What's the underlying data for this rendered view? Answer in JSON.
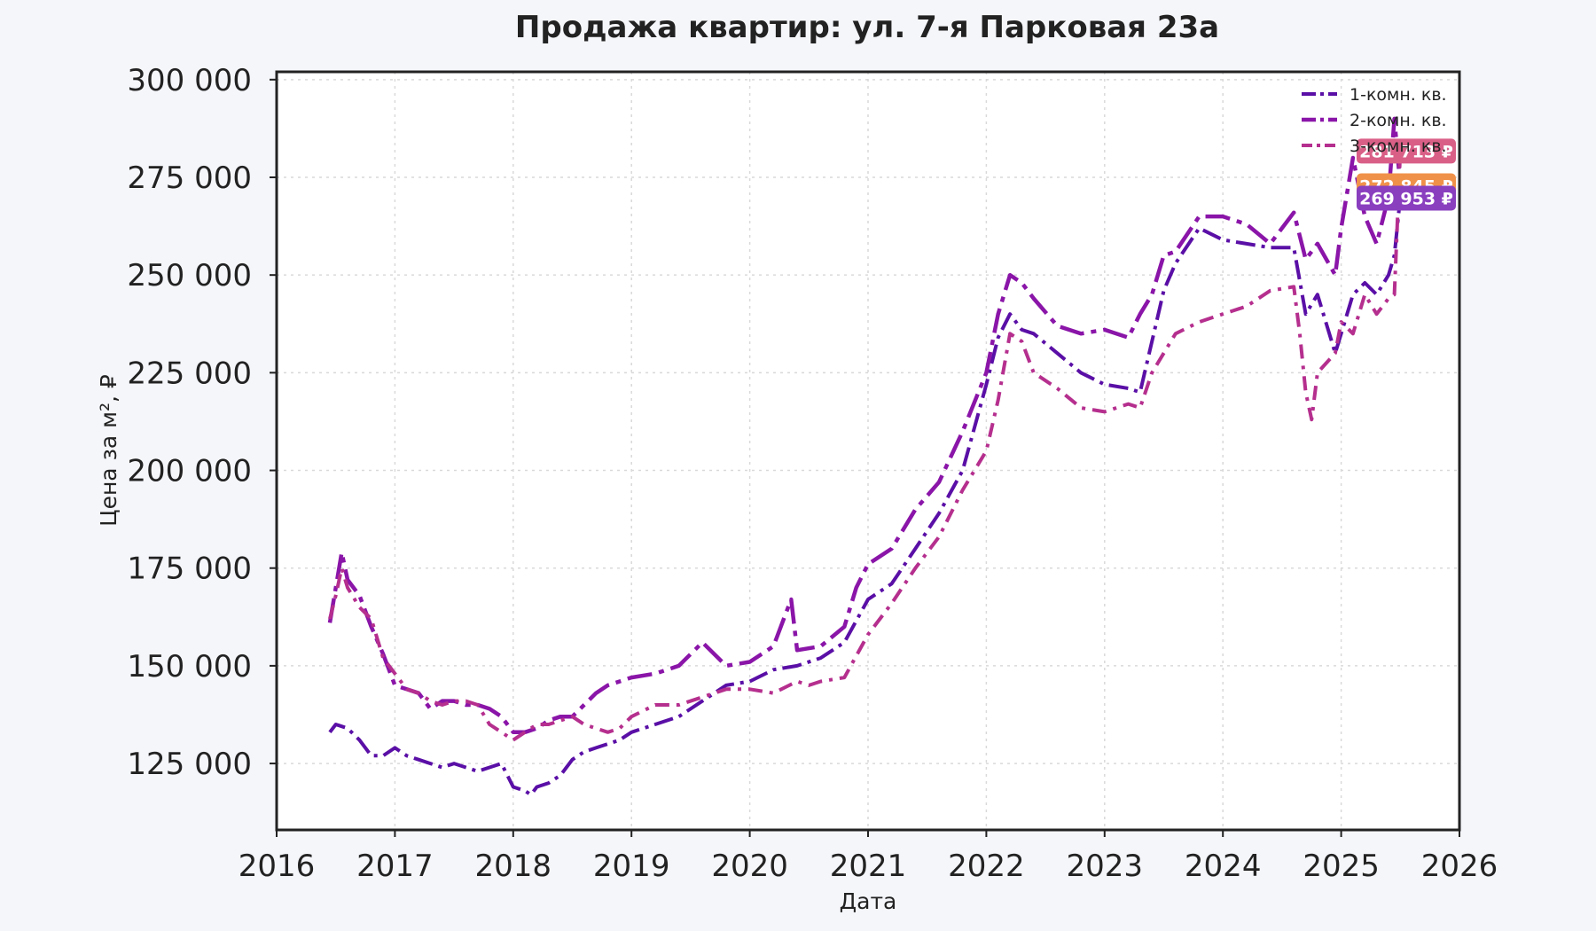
{
  "chart_data": {
    "type": "line",
    "title": "Продажа квартир: ул. 7-я Парковая 23а",
    "xlabel": "Дата",
    "ylabel": "Цена за м², ₽",
    "xlim": [
      2016.0,
      2026.0
    ],
    "ylim": [
      108000,
      302000
    ],
    "x_ticks": [
      "2016",
      "2017",
      "2018",
      "2019",
      "2020",
      "2021",
      "2022",
      "2023",
      "2024",
      "2025",
      "2026"
    ],
    "y_ticks": [
      "125 000",
      "150 000",
      "175 000",
      "200 000",
      "225 000",
      "250 000",
      "275 000",
      "300 000"
    ],
    "grid": true,
    "legend_position": "top-right",
    "series": [
      {
        "name": "1-комн. кв.",
        "color": "#5a0fa6",
        "points": [
          [
            2016.45,
            133000
          ],
          [
            2016.5,
            135000
          ],
          [
            2016.6,
            134000
          ],
          [
            2016.7,
            131000
          ],
          [
            2016.8,
            127000
          ],
          [
            2016.9,
            127000
          ],
          [
            2017.0,
            129000
          ],
          [
            2017.1,
            127000
          ],
          [
            2017.2,
            126000
          ],
          [
            2017.3,
            125000
          ],
          [
            2017.4,
            124000
          ],
          [
            2017.5,
            125000
          ],
          [
            2017.6,
            124000
          ],
          [
            2017.7,
            123000
          ],
          [
            2017.8,
            124000
          ],
          [
            2017.9,
            125000
          ],
          [
            2018.0,
            119000
          ],
          [
            2018.1,
            118000
          ],
          [
            2018.15,
            117000
          ],
          [
            2018.2,
            119000
          ],
          [
            2018.3,
            120000
          ],
          [
            2018.4,
            122000
          ],
          [
            2018.5,
            126000
          ],
          [
            2018.6,
            128000
          ],
          [
            2018.7,
            129000
          ],
          [
            2018.8,
            130000
          ],
          [
            2018.9,
            131000
          ],
          [
            2019.0,
            133000
          ],
          [
            2019.2,
            135000
          ],
          [
            2019.4,
            137000
          ],
          [
            2019.6,
            141000
          ],
          [
            2019.8,
            145000
          ],
          [
            2020.0,
            146000
          ],
          [
            2020.2,
            149000
          ],
          [
            2020.4,
            150000
          ],
          [
            2020.6,
            152000
          ],
          [
            2020.8,
            156000
          ],
          [
            2021.0,
            167000
          ],
          [
            2021.2,
            171000
          ],
          [
            2021.4,
            180000
          ],
          [
            2021.6,
            189000
          ],
          [
            2021.8,
            200000
          ],
          [
            2022.0,
            222000
          ],
          [
            2022.1,
            234000
          ],
          [
            2022.2,
            240000
          ],
          [
            2022.3,
            236000
          ],
          [
            2022.4,
            235000
          ],
          [
            2022.6,
            230000
          ],
          [
            2022.8,
            225000
          ],
          [
            2023.0,
            222000
          ],
          [
            2023.2,
            221000
          ],
          [
            2023.3,
            220000
          ],
          [
            2023.4,
            233000
          ],
          [
            2023.5,
            246000
          ],
          [
            2023.6,
            253000
          ],
          [
            2023.8,
            262000
          ],
          [
            2024.0,
            259000
          ],
          [
            2024.2,
            258000
          ],
          [
            2024.4,
            257000
          ],
          [
            2024.6,
            257000
          ],
          [
            2024.7,
            240000
          ],
          [
            2024.8,
            245000
          ],
          [
            2024.95,
            230000
          ],
          [
            2025.0,
            235000
          ],
          [
            2025.1,
            245000
          ],
          [
            2025.2,
            248000
          ],
          [
            2025.3,
            245000
          ],
          [
            2025.4,
            250000
          ],
          [
            2025.45,
            255000
          ],
          [
            2025.5,
            269953
          ]
        ]
      },
      {
        "name": "2-комн. кв.",
        "color": "#8a15a8",
        "points": [
          [
            2016.45,
            161000
          ],
          [
            2016.5,
            170000
          ],
          [
            2016.55,
            179000
          ],
          [
            2016.6,
            172000
          ],
          [
            2016.7,
            168000
          ],
          [
            2016.8,
            160000
          ],
          [
            2016.9,
            153000
          ],
          [
            2017.0,
            145000
          ],
          [
            2017.1,
            144000
          ],
          [
            2017.2,
            143000
          ],
          [
            2017.3,
            139000
          ],
          [
            2017.4,
            141000
          ],
          [
            2017.5,
            141000
          ],
          [
            2017.6,
            140000
          ],
          [
            2017.7,
            140000
          ],
          [
            2017.8,
            139000
          ],
          [
            2017.9,
            137000
          ],
          [
            2018.0,
            133000
          ],
          [
            2018.1,
            133000
          ],
          [
            2018.2,
            134000
          ],
          [
            2018.3,
            136000
          ],
          [
            2018.4,
            137000
          ],
          [
            2018.5,
            137000
          ],
          [
            2018.6,
            140000
          ],
          [
            2018.7,
            143000
          ],
          [
            2018.8,
            145000
          ],
          [
            2018.9,
            146000
          ],
          [
            2019.0,
            147000
          ],
          [
            2019.2,
            148000
          ],
          [
            2019.4,
            150000
          ],
          [
            2019.6,
            156000
          ],
          [
            2019.8,
            150000
          ],
          [
            2020.0,
            151000
          ],
          [
            2020.2,
            155000
          ],
          [
            2020.3,
            163000
          ],
          [
            2020.35,
            167000
          ],
          [
            2020.4,
            154000
          ],
          [
            2020.6,
            155000
          ],
          [
            2020.8,
            160000
          ],
          [
            2020.9,
            170000
          ],
          [
            2021.0,
            176000
          ],
          [
            2021.2,
            180000
          ],
          [
            2021.4,
            190000
          ],
          [
            2021.6,
            197000
          ],
          [
            2021.8,
            210000
          ],
          [
            2022.0,
            225000
          ],
          [
            2022.1,
            240000
          ],
          [
            2022.2,
            250000
          ],
          [
            2022.3,
            248000
          ],
          [
            2022.4,
            244000
          ],
          [
            2022.6,
            237000
          ],
          [
            2022.8,
            235000
          ],
          [
            2023.0,
            236000
          ],
          [
            2023.2,
            234000
          ],
          [
            2023.3,
            240000
          ],
          [
            2023.4,
            245000
          ],
          [
            2023.5,
            255000
          ],
          [
            2023.6,
            256000
          ],
          [
            2023.8,
            265000
          ],
          [
            2024.0,
            265000
          ],
          [
            2024.2,
            263000
          ],
          [
            2024.4,
            258000
          ],
          [
            2024.6,
            266000
          ],
          [
            2024.7,
            254000
          ],
          [
            2024.8,
            258000
          ],
          [
            2024.95,
            250000
          ],
          [
            2025.0,
            262000
          ],
          [
            2025.1,
            280000
          ],
          [
            2025.2,
            265000
          ],
          [
            2025.3,
            258000
          ],
          [
            2025.4,
            270000
          ],
          [
            2025.45,
            290000
          ],
          [
            2025.5,
            272845
          ]
        ]
      },
      {
        "name": "3-комн. кв.",
        "color": "#b52f8e",
        "points": [
          [
            2016.45,
            162000
          ],
          [
            2016.5,
            168000
          ],
          [
            2016.55,
            175000
          ],
          [
            2016.6,
            170000
          ],
          [
            2016.7,
            165000
          ],
          [
            2016.8,
            162000
          ],
          [
            2016.9,
            152000
          ],
          [
            2017.0,
            148000
          ],
          [
            2017.1,
            144000
          ],
          [
            2017.2,
            143000
          ],
          [
            2017.3,
            141000
          ],
          [
            2017.4,
            140000
          ],
          [
            2017.5,
            141000
          ],
          [
            2017.6,
            141000
          ],
          [
            2017.7,
            140000
          ],
          [
            2017.8,
            135000
          ],
          [
            2017.9,
            133000
          ],
          [
            2018.0,
            131000
          ],
          [
            2018.1,
            133000
          ],
          [
            2018.2,
            135000
          ],
          [
            2018.3,
            135000
          ],
          [
            2018.4,
            136000
          ],
          [
            2018.5,
            137000
          ],
          [
            2018.6,
            135000
          ],
          [
            2018.7,
            134000
          ],
          [
            2018.8,
            133000
          ],
          [
            2018.9,
            134000
          ],
          [
            2019.0,
            137000
          ],
          [
            2019.2,
            140000
          ],
          [
            2019.4,
            140000
          ],
          [
            2019.6,
            142000
          ],
          [
            2019.8,
            144000
          ],
          [
            2020.0,
            144000
          ],
          [
            2020.2,
            143000
          ],
          [
            2020.4,
            146000
          ],
          [
            2020.5,
            145000
          ],
          [
            2020.6,
            146000
          ],
          [
            2020.8,
            147000
          ],
          [
            2021.0,
            158000
          ],
          [
            2021.2,
            166000
          ],
          [
            2021.4,
            175000
          ],
          [
            2021.6,
            183000
          ],
          [
            2021.8,
            195000
          ],
          [
            2022.0,
            205000
          ],
          [
            2022.1,
            218000
          ],
          [
            2022.2,
            235000
          ],
          [
            2022.3,
            233000
          ],
          [
            2022.4,
            225000
          ],
          [
            2022.6,
            221000
          ],
          [
            2022.8,
            216000
          ],
          [
            2023.0,
            215000
          ],
          [
            2023.2,
            217000
          ],
          [
            2023.3,
            216000
          ],
          [
            2023.4,
            225000
          ],
          [
            2023.5,
            230000
          ],
          [
            2023.6,
            235000
          ],
          [
            2023.8,
            238000
          ],
          [
            2024.0,
            240000
          ],
          [
            2024.2,
            242000
          ],
          [
            2024.4,
            246000
          ],
          [
            2024.6,
            247000
          ],
          [
            2024.65,
            235000
          ],
          [
            2024.7,
            220000
          ],
          [
            2024.75,
            213000
          ],
          [
            2024.8,
            225000
          ],
          [
            2024.95,
            230000
          ],
          [
            2025.0,
            238000
          ],
          [
            2025.1,
            235000
          ],
          [
            2025.2,
            245000
          ],
          [
            2025.3,
            240000
          ],
          [
            2025.4,
            244000
          ],
          [
            2025.45,
            245000
          ],
          [
            2025.5,
            281713
          ]
        ]
      }
    ],
    "end_labels": [
      {
        "text": "281 713 ₽",
        "value": 281713,
        "color": "#d95f87"
      },
      {
        "text": "272 845 ₽",
        "value": 272845,
        "color": "#f0914a"
      },
      {
        "text": "269 953 ₽",
        "value": 269953,
        "color": "#8a3fbf"
      }
    ]
  }
}
